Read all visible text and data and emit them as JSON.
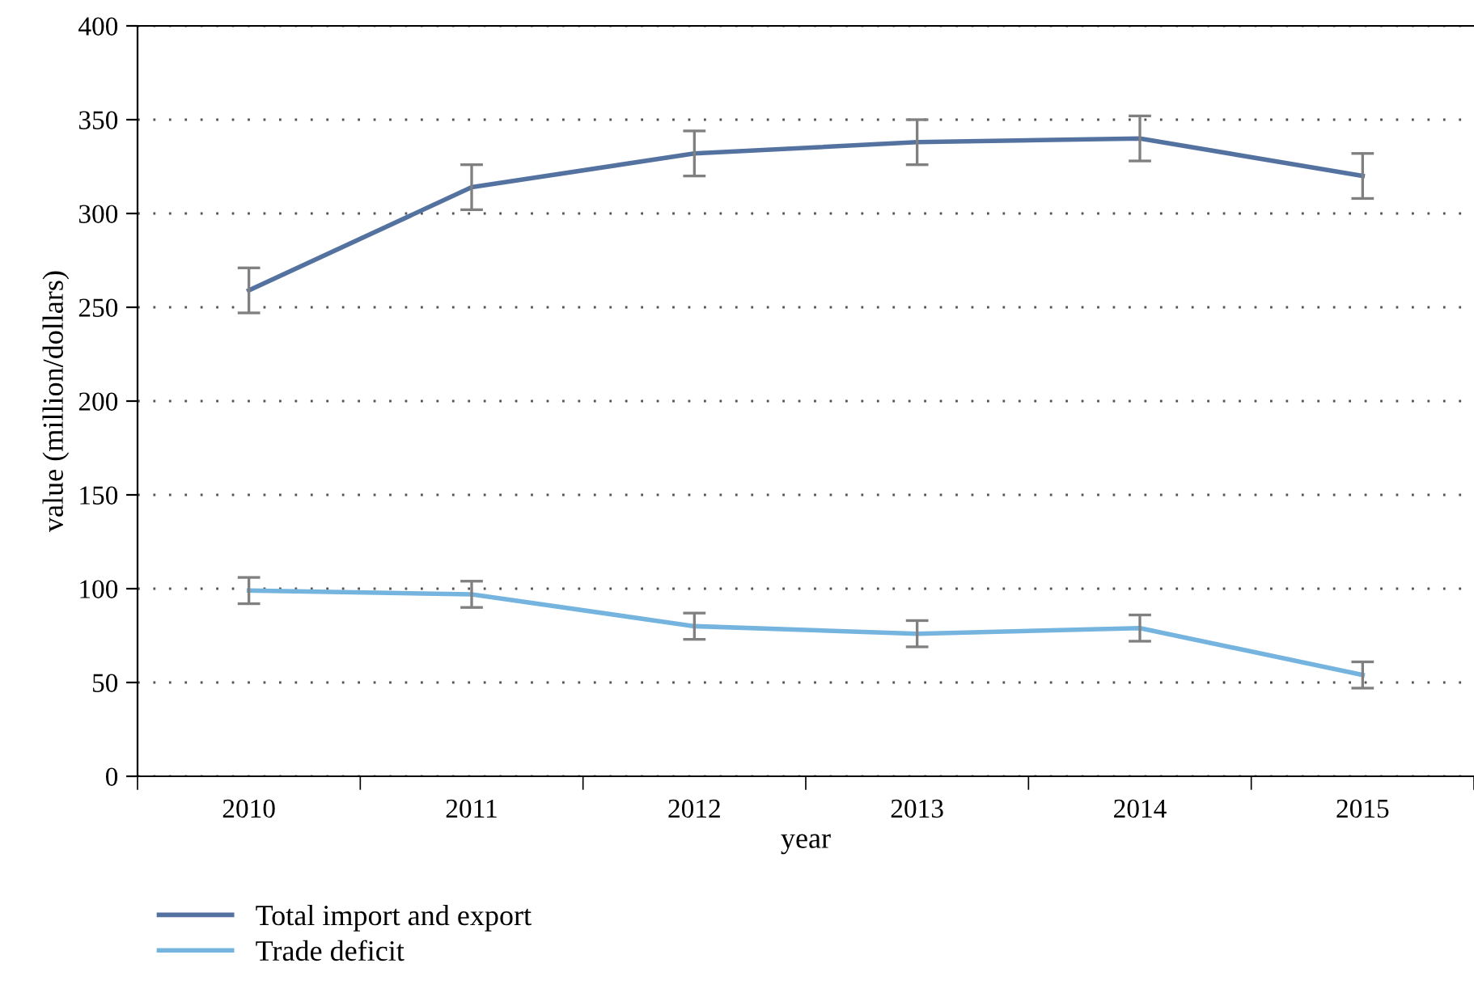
{
  "chart_data": {
    "type": "line",
    "xlabel": "year",
    "ylabel": "value (million/dollars)",
    "categories": [
      "2010",
      "2011",
      "2012",
      "2013",
      "2014",
      "2015"
    ],
    "series": [
      {
        "name": "Total import and export",
        "color": "#5472a0",
        "values": [
          259,
          314,
          332,
          338,
          340,
          320
        ],
        "errors": [
          12,
          12,
          12,
          12,
          12,
          12
        ]
      },
      {
        "name": "Trade deficit",
        "color": "#74b4de",
        "values": [
          99,
          97,
          80,
          76,
          79,
          54
        ],
        "errors": [
          7,
          7,
          7,
          7,
          7,
          7
        ]
      }
    ],
    "ylim": [
      0,
      400
    ],
    "yticks": [
      0,
      50,
      100,
      150,
      200,
      250,
      300,
      350,
      400
    ],
    "grid": "y",
    "legend": "bottom left",
    "marker": "none",
    "line_style": "solid"
  }
}
